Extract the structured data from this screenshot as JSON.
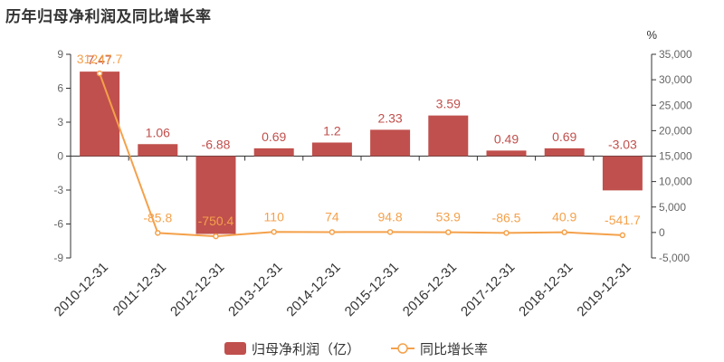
{
  "title": "历年归母净利润及同比增长率",
  "chart_data": {
    "type": "bar",
    "categories": [
      "2010-12-31",
      "2011-12-31",
      "2012-12-31",
      "2013-12-31",
      "2014-12-31",
      "2015-12-31",
      "2016-12-31",
      "2017-12-31",
      "2018-12-31",
      "2019-12-31"
    ],
    "series": [
      {
        "name": "归母净利润（亿）",
        "type": "bar",
        "axis": "left",
        "color": "#c0504d",
        "values": [
          7.47,
          1.06,
          -6.88,
          0.69,
          1.2,
          2.33,
          3.59,
          0.49,
          0.69,
          -3.03
        ],
        "labels": [
          "7.47",
          "1.06",
          "-6.88",
          "0.69",
          "1.2",
          "2.33",
          "3.59",
          "0.49",
          "0.69",
          "-3.03"
        ]
      },
      {
        "name": "同比增长率",
        "type": "line",
        "axis": "right",
        "color": "#f4a14b",
        "values": [
          31247.7,
          -85.8,
          -750.4,
          110,
          74,
          94.8,
          53.9,
          -86.5,
          40.9,
          -541.7
        ],
        "labels": [
          "31247.7",
          "-85.8",
          "-750.4",
          "110",
          "74",
          "94.8",
          "53.9",
          "-86.5",
          "40.9",
          "-541.7"
        ]
      }
    ],
    "y_left": {
      "min": -9,
      "max": 9,
      "ticks": [
        "9",
        "6",
        "3",
        "0",
        "-3",
        "-6",
        "-9"
      ],
      "tick_values": [
        9,
        6,
        3,
        0,
        -3,
        -6,
        -9
      ]
    },
    "y_right": {
      "min": -5000,
      "max": 35000,
      "unit": "%",
      "ticks": [
        "35,000",
        "30,000",
        "25,000",
        "20,000",
        "15,000",
        "10,000",
        "5,000",
        "0",
        "-5,000"
      ],
      "tick_values": [
        35000,
        30000,
        25000,
        20000,
        15000,
        10000,
        5000,
        0,
        -5000
      ]
    },
    "legend_position": "bottom-center",
    "grid": false
  }
}
